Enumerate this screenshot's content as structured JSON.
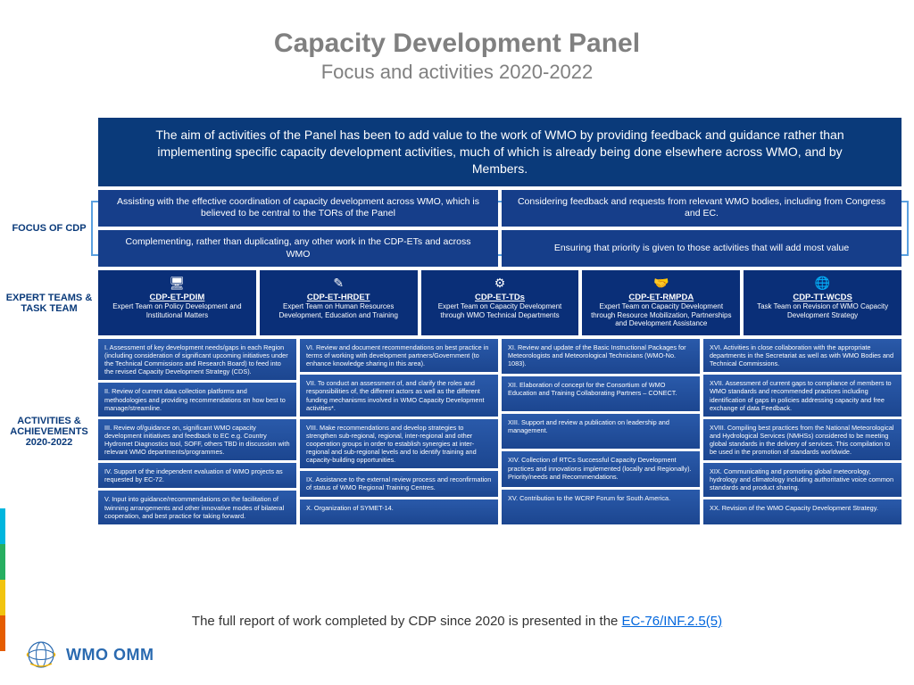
{
  "title": {
    "main": "Capacity Development Panel",
    "sub": "Focus and activities 2020-2022"
  },
  "colors": {
    "heading_text": "#808080",
    "label_text": "#0a3a7a",
    "aim_bg": "#0a3a7a",
    "focus_bg": "#163e8a",
    "team_bg": "#0a2f78",
    "activity_bg": "#2354a0",
    "border_accent": "#5aa0e0",
    "link": "#0066dd",
    "logo": "#2a6ab0",
    "stripes": [
      "#00b6de",
      "#27ae60",
      "#f1c40f",
      "#E55C00"
    ]
  },
  "aim": "The aim of activities of the Panel has been to add value to the work of WMO by providing feedback and guidance rather than implementing specific capacity development activities, much of which is already being done elsewhere across WMO, and by Members.",
  "labels": {
    "focus": "FOCUS OF CDP",
    "teams": "EXPERT TEAMS & TASK TEAM",
    "activities": "ACTIVITIES & ACHIEVEMENTS 2020-2022"
  },
  "focus": [
    "Assisting with the effective coordination of capacity development across WMO, which is believed to be central to the TORs of the Panel",
    "Considering feedback and requests from relevant WMO bodies, including from Congress and EC.",
    "Complementing, rather than duplicating, any other work in the CDP-ETs and across WMO",
    "Ensuring that priority is given to those activities that will add most value"
  ],
  "teams": [
    {
      "icon": "🖥",
      "code": "CDP-ET-PDIM",
      "desc": "Expert Team on Policy Development and Institutional Matters"
    },
    {
      "icon": "✎",
      "code": "CDP-ET-HRDET",
      "desc": "Expert Team on Human Resources Development, Education and Training"
    },
    {
      "icon": "⚙",
      "code": "CDP-ET-TDs",
      "desc": "Expert Team on Capacity Development through WMO Technical Departments"
    },
    {
      "icon": "🤝",
      "code": "CDP-ET-RMPDA",
      "desc": "Expert Team on Capacity Development through Resource Mobilization, Partnerships and Development Assistance"
    },
    {
      "icon": "🌐",
      "code": "CDP-TT-WCDS",
      "desc": "Task Team on Revision of WMO Capacity Development Strategy"
    }
  ],
  "activities": [
    [
      "I. Assessment of key development needs/gaps in each Region (including consideration of significant upcoming initiatives under the Technical Commissions and Research Board) to feed into the revised Capacity Development Strategy (CDS).",
      "II. Review of current data collection platforms and methodologies and providing recommendations on how best to manage/streamline.",
      "III. Review of/guidance on, significant WMO capacity development initiatives and feedback to EC e.g. Country Hydromet Diagnostics tool, SOFF, others TBD in discussion with relevant WMO departments/programmes.",
      "IV. Support of the independent evaluation of WMO projects as requested by EC-72.",
      "V. Input into guidance/recommendations on the facilitation of twinning arrangements and other innovative modes of bilateral cooperation, and best practice for taking forward."
    ],
    [
      "VI. Review and document recommendations on best practice in terms of working with development partners/Government (to enhance knowledge sharing in this area).",
      "VII. To conduct an assessment of, and clarify the roles and responsibilities of, the different actors as well as the different funding mechanisms involved in WMO Capacity Development activities*.",
      "VIII. Make recommendations and develop strategies to strengthen sub-regional, regional, inter-regional and other cooperation groups in order to establish synergies at inter-regional and sub-regional levels and to identify training and capacity-building opportunities.",
      "IX. Assistance to the external review process and reconfirmation of status of WMO Regional Training Centres.",
      "X. Organization of SYMET-14."
    ],
    [
      "XI. Review and update of the Basic Instructional Packages for Meteorologists and Meteorological Technicians (WMO-No. 1083).",
      "XII. Elaboration of concept for the Consortium of WMO Education and Training Collaborating Partners – CONECT.",
      "XIII. Support and review a publication on leadership and management.",
      "XIV. Collection of RTCs Successful Capacity Development practices and innovations implemented (locally and Regionally). Priority/needs and Recommendations.",
      "XV. Contribution to the WCRP Forum for South America."
    ],
    [
      "XVI. Activities in close collaboration with the appropriate departments in the Secretariat as well as with WMO Bodies and Technical Commissions.",
      "XVII. Assessment of current gaps to compliance of members to WMO standards and recommended practices including identification of gaps in policies addressing capacity and free exchange of data Feedback.",
      "XVIII. Compiling best practices from the National Meteorological and Hydrological Services (NMHSs) considered to be meeting global standards in the delivery of services. This compilation to be used in the promotion of standards worldwide.",
      "XIX. Communicating and promoting global meteorology, hydrology and climatology including authoritative voice common standards and product sharing.",
      "XX. Revision of the WMO Capacity Development Strategy."
    ]
  ],
  "footer": {
    "prefix": "The full report of work completed by CDP since 2020 is presented in the ",
    "link_text": "EC-76/INF.2.5(5)"
  },
  "logo_text": "WMO OMM"
}
